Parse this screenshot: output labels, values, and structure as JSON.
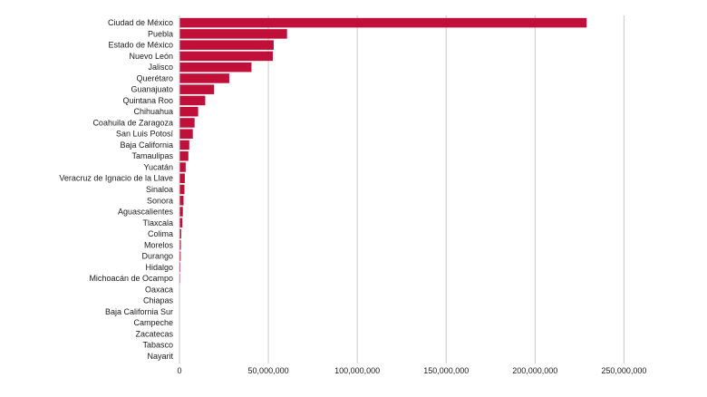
{
  "chart_data": {
    "type": "bar",
    "orientation": "horizontal",
    "title": "",
    "xlabel": "",
    "ylabel": "",
    "xlim": [
      0,
      260000000
    ],
    "x_ticks": [
      0,
      50000000,
      100000000,
      150000000,
      200000000,
      250000000
    ],
    "x_tick_labels": [
      "0",
      "50,000,000",
      "100,000,000",
      "150,000,000",
      "200,000,000",
      "250,000,000"
    ],
    "grid": "vertical",
    "legend": "none",
    "color": "#c0103a",
    "categories": [
      "Ciudad de México",
      "Puebla",
      "Estado de México",
      "Nuevo León",
      "Jalisco",
      "Querétaro",
      "Guanajuato",
      "Quintana Roo",
      "Chihuahua",
      "Coahuila de Zaragoza",
      "San Luis Potosí",
      "Baja California",
      "Tamaulipas",
      "Yucatán",
      "Veracruz de Ignacio de la Llave",
      "Sinaloa",
      "Sonora",
      "Aguascalientes",
      "Tlaxcala",
      "Colima",
      "Morelos",
      "Durango",
      "Hidalgo",
      "Michoacán de Ocampo",
      "Oaxaca",
      "Chiapas",
      "Baja California Sur",
      "Campeche",
      "Zacatecas",
      "Tabasco",
      "Nayarit"
    ],
    "values": [
      229000000,
      60500000,
      53000000,
      52500000,
      40500000,
      28000000,
      19500000,
      14500000,
      10500000,
      8500000,
      7500000,
      5500000,
      5000000,
      3500000,
      3000000,
      2800000,
      2300000,
      1900000,
      1600000,
      1000000,
      800000,
      700000,
      500000,
      400000,
      0,
      0,
      0,
      0,
      0,
      0,
      0
    ]
  }
}
